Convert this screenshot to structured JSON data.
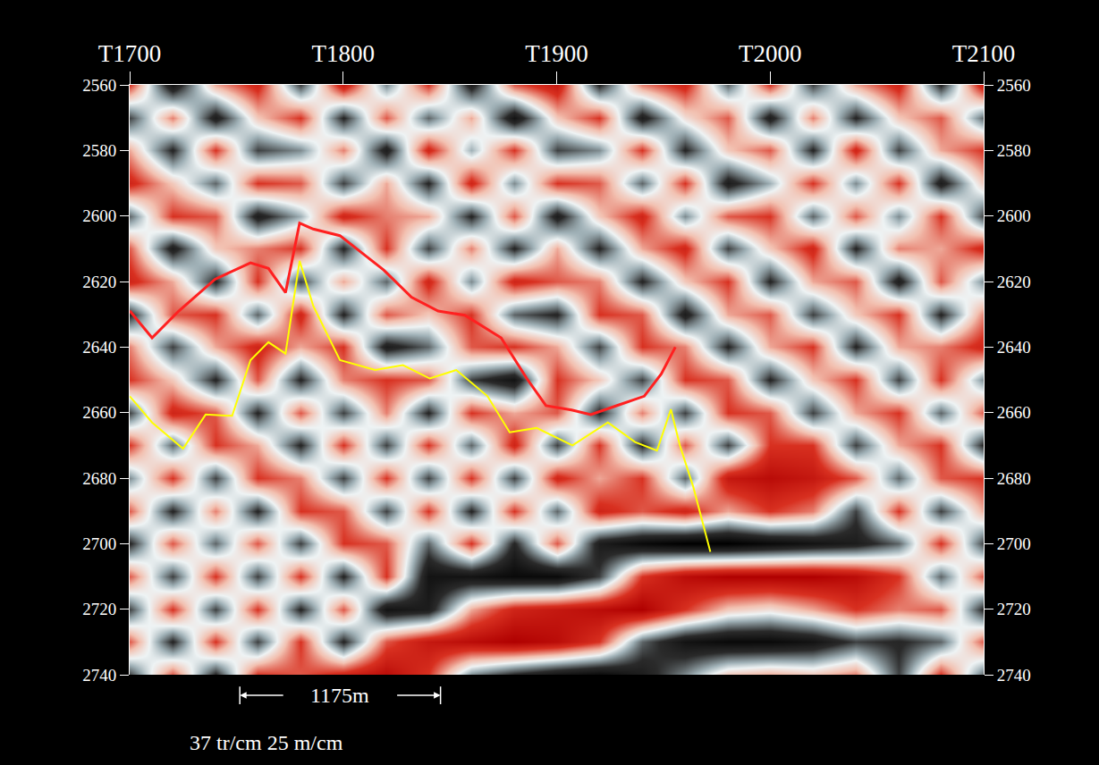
{
  "chart_data": {
    "type": "heatmap",
    "x": [
      1700,
      1720,
      1740,
      1760,
      1780,
      1800,
      1820,
      1840,
      1860,
      1880,
      1900,
      1920,
      1940,
      1960,
      1980,
      2000,
      2020,
      2040,
      2060,
      2080,
      2100
    ],
    "y": [
      2560,
      2570,
      2580,
      2590,
      2600,
      2610,
      2620,
      2630,
      2640,
      2650,
      2660,
      2670,
      2680,
      2690,
      2700,
      2710,
      2720,
      2730,
      2740
    ],
    "z": [
      [
        0.6,
        -0.8,
        0.3,
        0.7,
        -0.5,
        0.8,
        -0.3,
        0.6,
        -0.7,
        0.5,
        0.8,
        -0.6,
        0.4,
        0.7,
        -0.4,
        0.6,
        -0.5,
        0.3,
        0.7,
        -0.6,
        0.8
      ],
      [
        -0.5,
        0.4,
        -0.7,
        0.2,
        0.6,
        -0.6,
        0.5,
        -0.4,
        0.3,
        -0.8,
        0.2,
        0.6,
        -0.7,
        0.1,
        0.5,
        -0.7,
        0.4,
        -0.6,
        0.2,
        0.5,
        -0.4
      ],
      [
        0.3,
        -0.6,
        0.6,
        -0.5,
        -0.3,
        0.4,
        -0.7,
        0.7,
        -0.2,
        0.6,
        -0.5,
        -0.3,
        0.6,
        -0.6,
        0.2,
        0.5,
        -0.6,
        0.7,
        -0.5,
        0.3,
        0.6
      ],
      [
        0.7,
        0.2,
        -0.4,
        0.6,
        0.5,
        -0.5,
        0.3,
        -0.6,
        0.7,
        -0.3,
        0.6,
        0.5,
        -0.4,
        0.6,
        -0.7,
        -0.2,
        0.6,
        -0.3,
        0.6,
        -0.7,
        0.2
      ],
      [
        -0.4,
        0.6,
        0.5,
        -0.7,
        -0.2,
        0.7,
        0.4,
        0.3,
        -0.6,
        0.5,
        -0.7,
        0.2,
        0.7,
        -0.3,
        0.5,
        0.6,
        -0.4,
        0.5,
        -0.3,
        0.6,
        -0.5
      ],
      [
        0.5,
        -0.7,
        0.2,
        0.4,
        0.6,
        -0.6,
        0.6,
        -0.5,
        0.4,
        -0.6,
        0.3,
        -0.6,
        0.3,
        0.7,
        -0.5,
        0.2,
        0.7,
        -0.6,
        0.4,
        0.3,
        0.7
      ],
      [
        0.7,
        0.3,
        -0.6,
        0.6,
        -0.5,
        0.3,
        -0.4,
        0.7,
        -0.3,
        0.7,
        0.5,
        0.4,
        -0.6,
        0.2,
        0.6,
        -0.6,
        0.3,
        0.5,
        -0.7,
        0.5,
        -0.3
      ],
      [
        -0.6,
        0.5,
        0.6,
        -0.4,
        0.7,
        -0.6,
        0.5,
        0.2,
        0.6,
        -0.4,
        -0.6,
        0.6,
        0.5,
        -0.7,
        0.3,
        0.5,
        -0.5,
        0.2,
        0.6,
        -0.6,
        0.4
      ],
      [
        0.4,
        -0.5,
        0.3,
        0.7,
        0.3,
        0.6,
        -0.7,
        -0.4,
        0.5,
        0.6,
        0.3,
        -0.5,
        0.6,
        0.4,
        -0.6,
        0.3,
        0.6,
        -0.6,
        0.3,
        0.4,
        0.7
      ],
      [
        0.6,
        0.2,
        -0.6,
        0.5,
        -0.6,
        0.4,
        0.6,
        0.5,
        -0.5,
        -0.8,
        0.6,
        0.2,
        -0.5,
        0.6,
        0.5,
        -0.6,
        0.2,
        0.6,
        -0.5,
        0.6,
        -0.3
      ],
      [
        -0.5,
        0.7,
        0.5,
        -0.6,
        0.5,
        -0.5,
        0.4,
        -0.6,
        0.6,
        0.3,
        0.5,
        -0.6,
        0.4,
        -0.5,
        0.6,
        0.5,
        -0.5,
        0.3,
        0.6,
        -0.4,
        0.5
      ],
      [
        0.6,
        -0.4,
        0.6,
        0.3,
        -0.6,
        0.6,
        -0.5,
        0.6,
        -0.4,
        0.7,
        -0.5,
        0.6,
        -0.6,
        0.5,
        -0.5,
        0.6,
        0.6,
        -0.5,
        0.3,
        0.6,
        -0.6
      ],
      [
        -0.3,
        0.6,
        -0.5,
        0.6,
        0.4,
        -0.5,
        0.6,
        -0.5,
        0.6,
        -0.5,
        0.7,
        0.3,
        0.6,
        -0.4,
        0.8,
        0.9,
        0.8,
        0.5,
        -0.4,
        0.5,
        0.6
      ],
      [
        0.5,
        -0.6,
        0.4,
        -0.6,
        0.6,
        0.5,
        -0.5,
        0.6,
        -0.6,
        0.6,
        -0.4,
        0.7,
        0.5,
        0.7,
        0.3,
        0.6,
        0.4,
        -0.5,
        0.6,
        -0.5,
        0.3
      ],
      [
        -0.6,
        0.5,
        -0.4,
        0.5,
        -0.5,
        0.6,
        0.5,
        -0.4,
        0.6,
        -0.6,
        0.5,
        -0.7,
        -0.9,
        -1,
        -1,
        -0.9,
        -0.8,
        -0.7,
        -0.4,
        0.6,
        -0.5
      ],
      [
        0.5,
        -0.5,
        0.6,
        -0.5,
        0.6,
        -0.6,
        0.6,
        -0.8,
        -0.8,
        -0.9,
        -0.9,
        -0.5,
        0.6,
        0.9,
        1,
        1,
        1,
        0.9,
        0.6,
        -0.4,
        0.5
      ],
      [
        -0.5,
        0.6,
        -0.5,
        0.6,
        -0.6,
        0.5,
        -0.8,
        -0.7,
        0.3,
        0.7,
        0.8,
        0.9,
        1,
        0.6,
        0.2,
        0.1,
        0.3,
        0.6,
        0.4,
        0.5,
        -0.6
      ],
      [
        0.5,
        -0.6,
        0.6,
        -0.5,
        0.6,
        -0.6,
        0.5,
        0.8,
        0.9,
        1,
        0.9,
        0.6,
        -0.4,
        -0.8,
        -0.9,
        -0.9,
        -0.8,
        -0.5,
        -0.6,
        -0.4,
        0.5
      ],
      [
        -0.5,
        0.5,
        -0.6,
        0.6,
        0.5,
        0.7,
        0.9,
        0.6,
        -0.3,
        -0.6,
        -0.8,
        -0.9,
        -0.7,
        -0.3,
        0.2,
        0.3,
        0.2,
        0.4,
        -0.5,
        0.6,
        -0.4
      ]
    ],
    "zlim": [
      -1,
      1
    ],
    "series": [
      {
        "type": "line",
        "color": "#ff2020",
        "x": [
          1700,
          1710.5,
          1723,
          1740,
          1756.6,
          1765,
          1773,
          1779.6,
          1786,
          1798.5,
          1811,
          1819,
          1832,
          1844.5,
          1857,
          1874,
          1886,
          1895,
          1907,
          1916,
          1928,
          1941,
          1949,
          1955.6
        ],
        "values": [
          2628.9,
          2637.2,
          2629,
          2619.3,
          2614.3,
          2616,
          2623.4,
          2602.2,
          2604,
          2606,
          2612.4,
          2616.5,
          2624.8,
          2629,
          2630.3,
          2637.2,
          2649.6,
          2657.9,
          2659.2,
          2660.6,
          2657.9,
          2655,
          2648.2,
          2640
        ]
      },
      {
        "type": "line",
        "color": "#ffff00",
        "x": [
          1700,
          1710.5,
          1725,
          1735.6,
          1748,
          1756.6,
          1765,
          1773,
          1779.6,
          1786,
          1798.5,
          1815,
          1828,
          1840.6,
          1853,
          1867.6,
          1878,
          1890.6,
          1907.4,
          1924,
          1936.7,
          1947,
          1953.5,
          1957.7,
          1964,
          1972
        ],
        "values": [
          2655,
          2663,
          2671,
          2660.6,
          2661,
          2644,
          2638.5,
          2642,
          2613.7,
          2627.5,
          2644,
          2647,
          2645.5,
          2649.6,
          2647,
          2655,
          2666,
          2664.7,
          2670,
          2663,
          2669,
          2671.6,
          2659,
          2670,
          2682.7,
          2702.5
        ]
      }
    ],
    "xlim": [
      1700,
      2100
    ],
    "xticks": [
      {
        "value": 1700,
        "label": "T1700"
      },
      {
        "value": 1800,
        "label": "T1800"
      },
      {
        "value": 1900,
        "label": "T1900"
      },
      {
        "value": 2000,
        "label": "T2000"
      },
      {
        "value": 2100,
        "label": "T2100"
      }
    ],
    "ylim": [
      2740,
      2560
    ],
    "yticks": [
      2560,
      2580,
      2600,
      2620,
      2640,
      2660,
      2680,
      2700,
      2720,
      2740
    ],
    "annotations": [
      "1175m",
      "37 tr/cm 25 m/cm"
    ],
    "grid": false
  }
}
